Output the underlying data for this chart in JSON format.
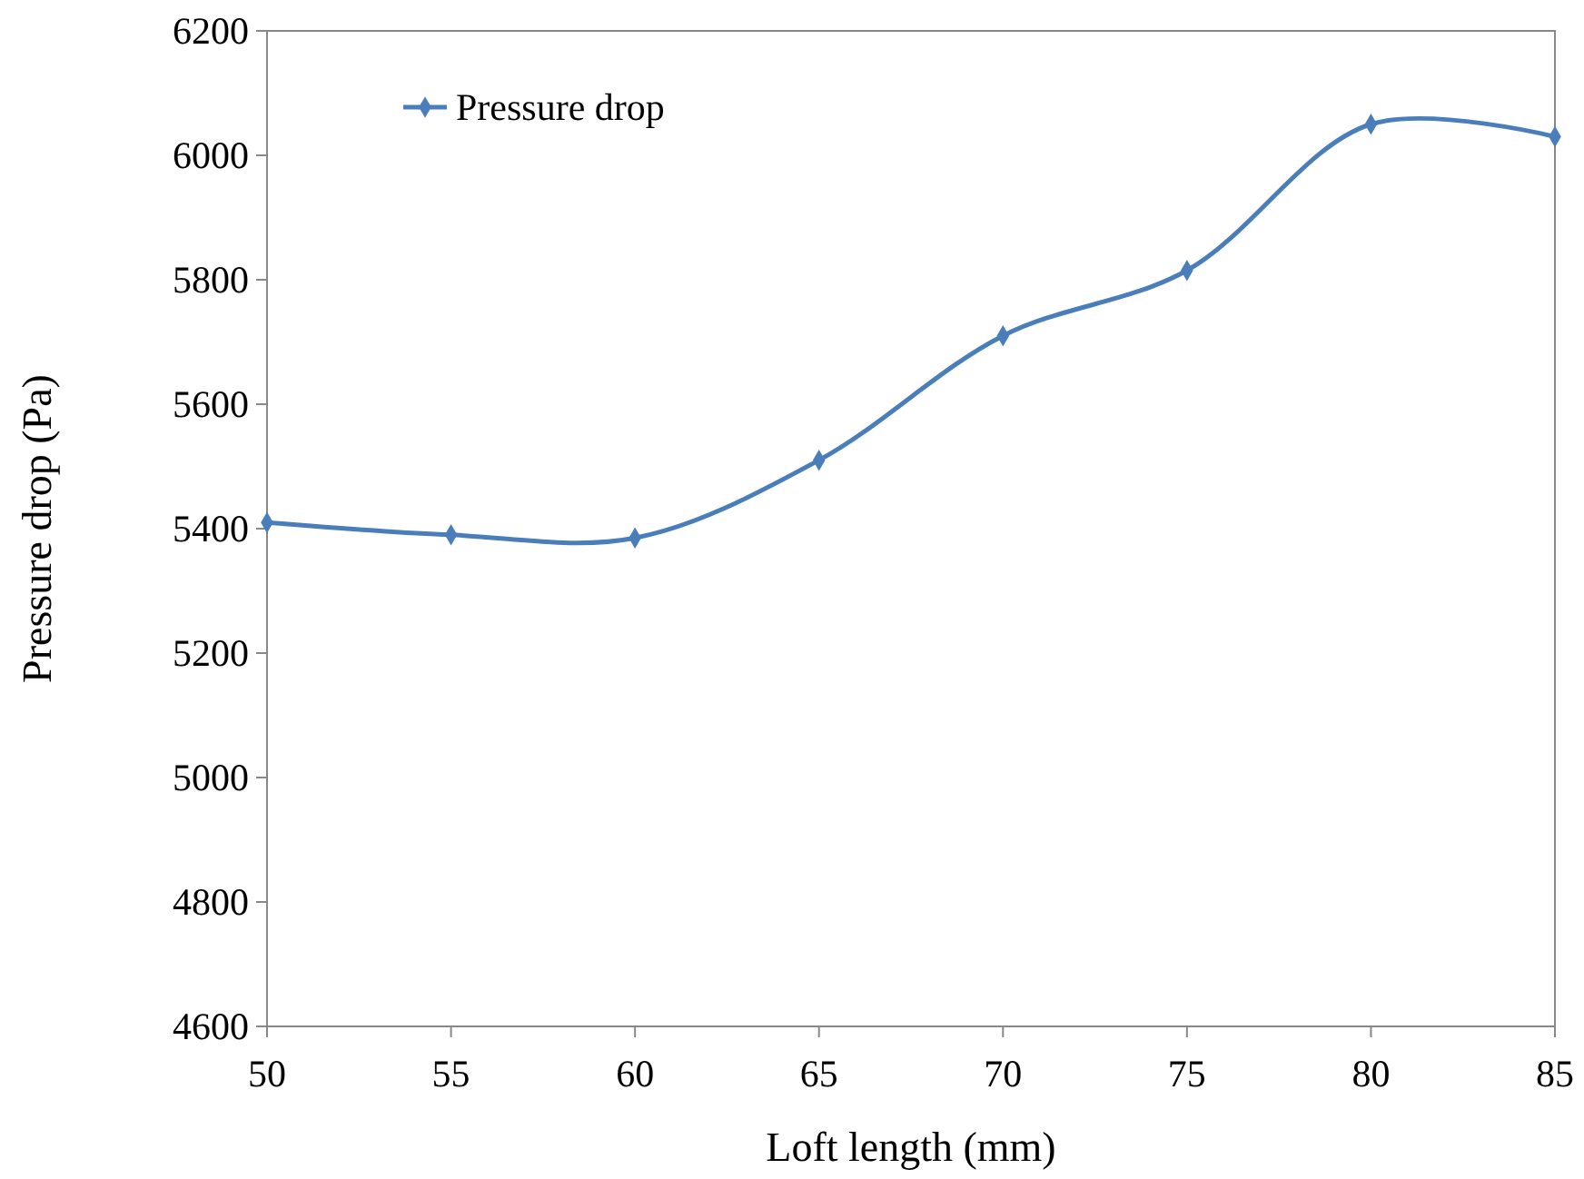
{
  "chart_data": {
    "type": "line",
    "xlabel": "Loft length (mm)",
    "ylabel": "Pressure drop (Pa)",
    "x": [
      50,
      55,
      60,
      65,
      70,
      75,
      80,
      85
    ],
    "series": [
      {
        "name": "Pressure drop",
        "color": "#4a7ebb",
        "values": [
          5410,
          5390,
          5385,
          5510,
          5710,
          5815,
          6050,
          6030
        ]
      }
    ],
    "xlim": [
      50,
      85
    ],
    "xticks": [
      50,
      55,
      60,
      65,
      70,
      75,
      80,
      85
    ],
    "ylim": [
      4600,
      6200
    ],
    "yticks": [
      4600,
      4800,
      5000,
      5200,
      5400,
      5600,
      5800,
      6000,
      6200
    ],
    "grid": false,
    "legend": "top left",
    "marker": "diamond",
    "line_style": "solid"
  }
}
